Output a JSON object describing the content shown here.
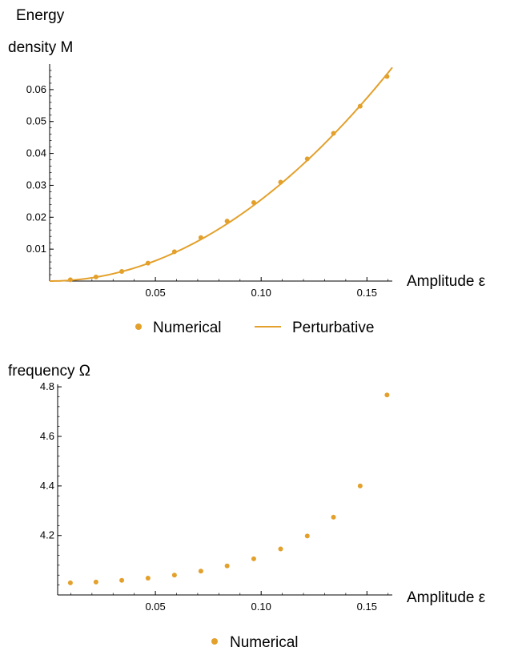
{
  "chart_data": [
    {
      "type": "line",
      "ylabel_line1": "Energy",
      "ylabel_line2": "density M",
      "xlabel": "Amplitude ε",
      "xlim": [
        0,
        0.162
      ],
      "ylim": [
        0,
        0.068
      ],
      "x_ticks": [
        0.05,
        0.1,
        0.15
      ],
      "x_tick_labels": [
        "0.05",
        "0.10",
        "0.15"
      ],
      "y_ticks": [
        0.01,
        0.02,
        0.03,
        0.04,
        0.05,
        0.06
      ],
      "y_tick_labels": [
        "0.01",
        "0.02",
        "0.03",
        "0.04",
        "0.05",
        "0.06"
      ],
      "legend": {
        "placement": "bottom-center",
        "entries": [
          "Numerical",
          "Perturbative"
        ]
      },
      "color": "#E3A02B",
      "series": [
        {
          "name": "Numerical",
          "kind": "scatter",
          "x": [
            0.0098,
            0.0219,
            0.0341,
            0.0465,
            0.059,
            0.0715,
            0.0839,
            0.0965,
            0.1092,
            0.1218,
            0.1342,
            0.1468,
            0.1595
          ],
          "y": [
            0.0004,
            0.0013,
            0.003,
            0.0056,
            0.0092,
            0.0136,
            0.0188,
            0.0246,
            0.031,
            0.0383,
            0.0463,
            0.0548,
            0.0641
          ]
        },
        {
          "name": "Perturbative",
          "kind": "line",
          "coefficient": 2.55,
          "exponent": 2,
          "x_range": [
            0,
            0.162
          ]
        }
      ]
    },
    {
      "type": "scatter",
      "ylabel": "frequency Ω",
      "xlabel": "Amplitude ε",
      "xlim": [
        0,
        0.162
      ],
      "ylim": [
        3.96,
        4.81
      ],
      "x_ticks": [
        0.05,
        0.1,
        0.15
      ],
      "x_tick_labels": [
        "0.05",
        "0.10",
        "0.15"
      ],
      "y_ticks": [
        4.2,
        4.4,
        4.6,
        4.8
      ],
      "y_tick_labels": [
        "4.2",
        "4.4",
        "4.6",
        "4.8"
      ],
      "legend": {
        "placement": "bottom-center",
        "entries": [
          "Numerical"
        ]
      },
      "color": "#E3A02B",
      "series": [
        {
          "name": "Numerical",
          "x": [
            0.0098,
            0.0219,
            0.0341,
            0.0465,
            0.059,
            0.0715,
            0.0839,
            0.0965,
            0.1092,
            0.1218,
            0.1342,
            0.1468,
            0.1595
          ],
          "y": [
            4.009,
            4.012,
            4.019,
            4.028,
            4.04,
            4.056,
            4.077,
            4.106,
            4.146,
            4.198,
            4.274,
            4.4,
            4.767
          ]
        }
      ]
    }
  ]
}
